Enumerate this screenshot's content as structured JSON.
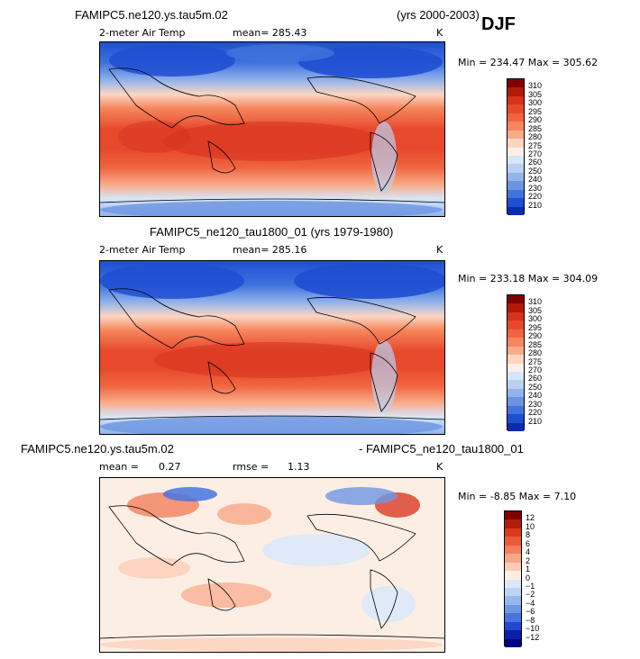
{
  "panel1": {
    "title_left": "FAMIPC5.ne120.ys.tau5m.02",
    "title_right": "(yrs 2000-2003)",
    "season": "DJF",
    "variable": "2-meter Air Temp",
    "mean": "mean= 285.43",
    "units": "K",
    "minmax": "Min = 234.47 Max = 305.62",
    "levels": [
      "310",
      "305",
      "300",
      "295",
      "290",
      "285",
      "280",
      "275",
      "270",
      "260",
      "250",
      "240",
      "230",
      "220",
      "210"
    ]
  },
  "panel2": {
    "title": "FAMIPC5_ne120_tau1800_01 (yrs 1979-1980)",
    "variable": "2-meter Air Temp",
    "mean": "mean= 285.16",
    "units": "K",
    "minmax": "Min = 233.18 Max = 304.09",
    "levels": [
      "310",
      "305",
      "300",
      "295",
      "290",
      "285",
      "280",
      "275",
      "270",
      "260",
      "250",
      "240",
      "230",
      "220",
      "210"
    ]
  },
  "panel3": {
    "title_left": "FAMIPC5.ne120.ys.tau5m.02",
    "title_right": "- FAMIPC5_ne120_tau1800_01",
    "mean_label": "mean =",
    "mean_value": "0.27",
    "rmse_label": "rmse =",
    "rmse_value": "1.13",
    "units": "K",
    "minmax": "Min = -8.85 Max = 7.10",
    "levels": [
      "12",
      "10",
      "8",
      "6",
      "4",
      "2",
      "1",
      "0",
      "−1",
      "−2",
      "−4",
      "−6",
      "−8",
      "−10",
      "−12"
    ]
  },
  "colors": {
    "temp_scale": [
      "#7f0000",
      "#b01a0a",
      "#d6321d",
      "#e8492c",
      "#f0653f",
      "#f5875e",
      "#f9ab89",
      "#fcd6c2",
      "#fdf0e8",
      "#d7e6f8",
      "#b9d0f1",
      "#93b4ea",
      "#6b93e2",
      "#4173dd",
      "#1f4ed2",
      "#0a2ab0"
    ],
    "diff_scale": [
      "#7f0000",
      "#b51b0b",
      "#d93a20",
      "#ec5a38",
      "#f37f5b",
      "#f8a787",
      "#fbcdb6",
      "#fdeee4",
      "#dbe8f8",
      "#bcd3f2",
      "#97b8ec",
      "#6f96e3",
      "#4774de",
      "#2149cf",
      "#0a1fa4",
      "#000080"
    ]
  }
}
